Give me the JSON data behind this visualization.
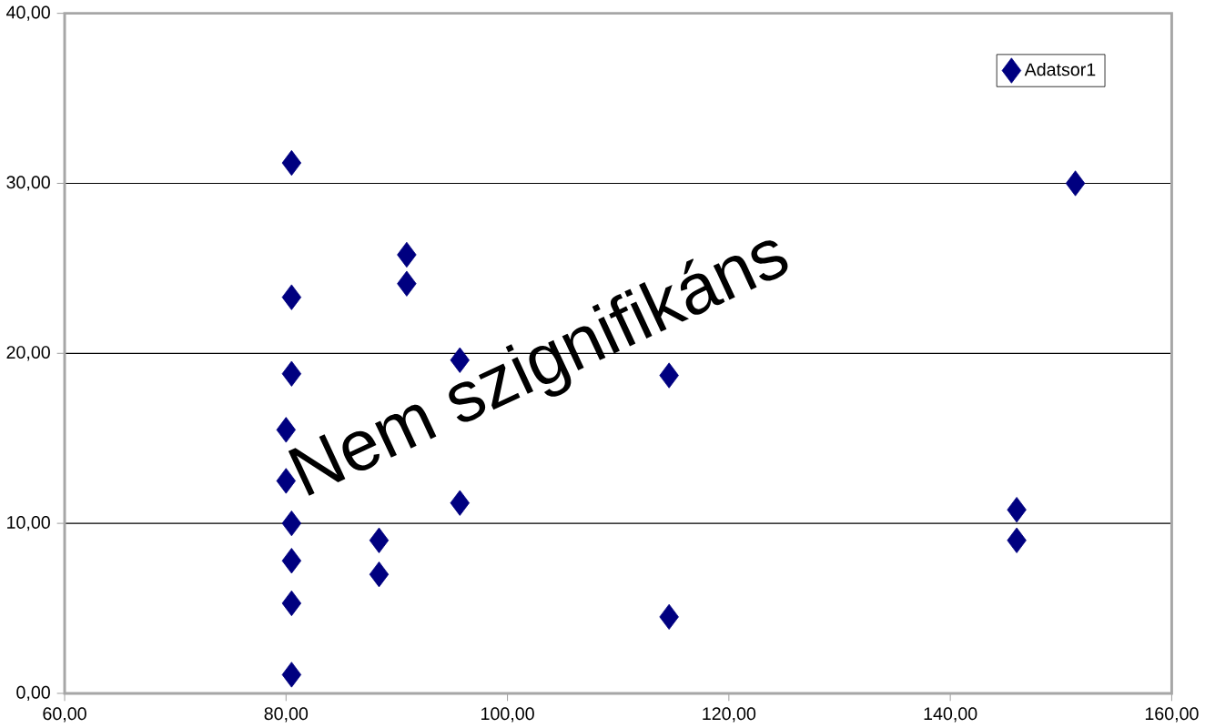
{
  "chart_data": {
    "type": "scatter",
    "x": [
      80.5,
      80.5,
      80.5,
      80.0,
      80.0,
      80.5,
      80.5,
      80.5,
      80.5,
      90.9,
      90.9,
      88.4,
      88.4,
      95.7,
      95.7,
      114.6,
      114.6,
      146.0,
      146.0,
      151.3
    ],
    "series": [
      {
        "name": "Adatsor1",
        "color": "#000080",
        "values": [
          31.2,
          23.3,
          18.8,
          15.5,
          12.5,
          10.0,
          7.8,
          5.3,
          1.1,
          25.8,
          24.1,
          9.0,
          7.0,
          19.6,
          11.2,
          18.7,
          4.5,
          10.8,
          9.0,
          30.0
        ]
      }
    ],
    "xlim": [
      60,
      160
    ],
    "ylim": [
      0,
      40
    ],
    "xticks": [
      {
        "value": 60,
        "label": "60,00"
      },
      {
        "value": 80,
        "label": "80,00"
      },
      {
        "value": 100,
        "label": "100,00"
      },
      {
        "value": 120,
        "label": "120,00"
      },
      {
        "value": 140,
        "label": "140,00"
      },
      {
        "value": 160,
        "label": "160,00"
      }
    ],
    "yticks": [
      {
        "value": 0,
        "label": "0,00"
      },
      {
        "value": 10,
        "label": "10,00"
      },
      {
        "value": 20,
        "label": "20,00"
      },
      {
        "value": 30,
        "label": "30,00"
      },
      {
        "value": 40,
        "label": "40,00"
      }
    ],
    "grid": "y",
    "legend": "top right",
    "marker": "diamond",
    "annotations": [
      "Nem szignifikáns"
    ]
  }
}
